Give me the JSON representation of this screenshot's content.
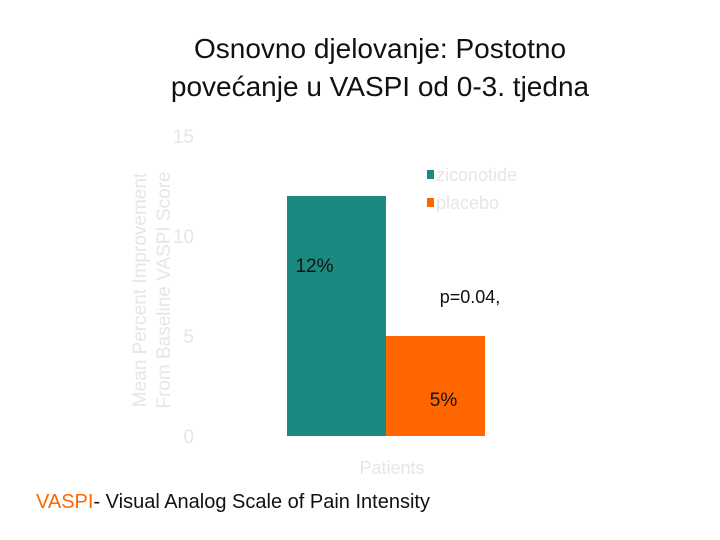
{
  "title_lines": [
    "Osnovno djelovanje: Postotno",
    "povećanje u VASPI od 0-3. tjedna"
  ],
  "chart_data": {
    "type": "bar",
    "categories": [
      "Patients"
    ],
    "series": [
      {
        "name": "ziconotide",
        "values": [
          12
        ],
        "color": "#1a8a80",
        "label": "12%"
      },
      {
        "name": "placebo",
        "values": [
          5
        ],
        "color": "#ff6600",
        "label": "5%"
      }
    ],
    "xlabel": "Patients",
    "ylabel_lines": [
      "Mean Percent Improvement",
      "From Baseline VASPI Score"
    ],
    "ylim": [
      0,
      15
    ],
    "yticks": [
      0,
      5,
      10,
      15
    ],
    "annotation": "p=0.04,",
    "legend_position": "top-right",
    "grid": false,
    "faded_text_color": "#e6e6e6"
  },
  "footnote": {
    "accent": "VASPI",
    "rest": "- Visual Analog Scale of Pain Intensity"
  }
}
